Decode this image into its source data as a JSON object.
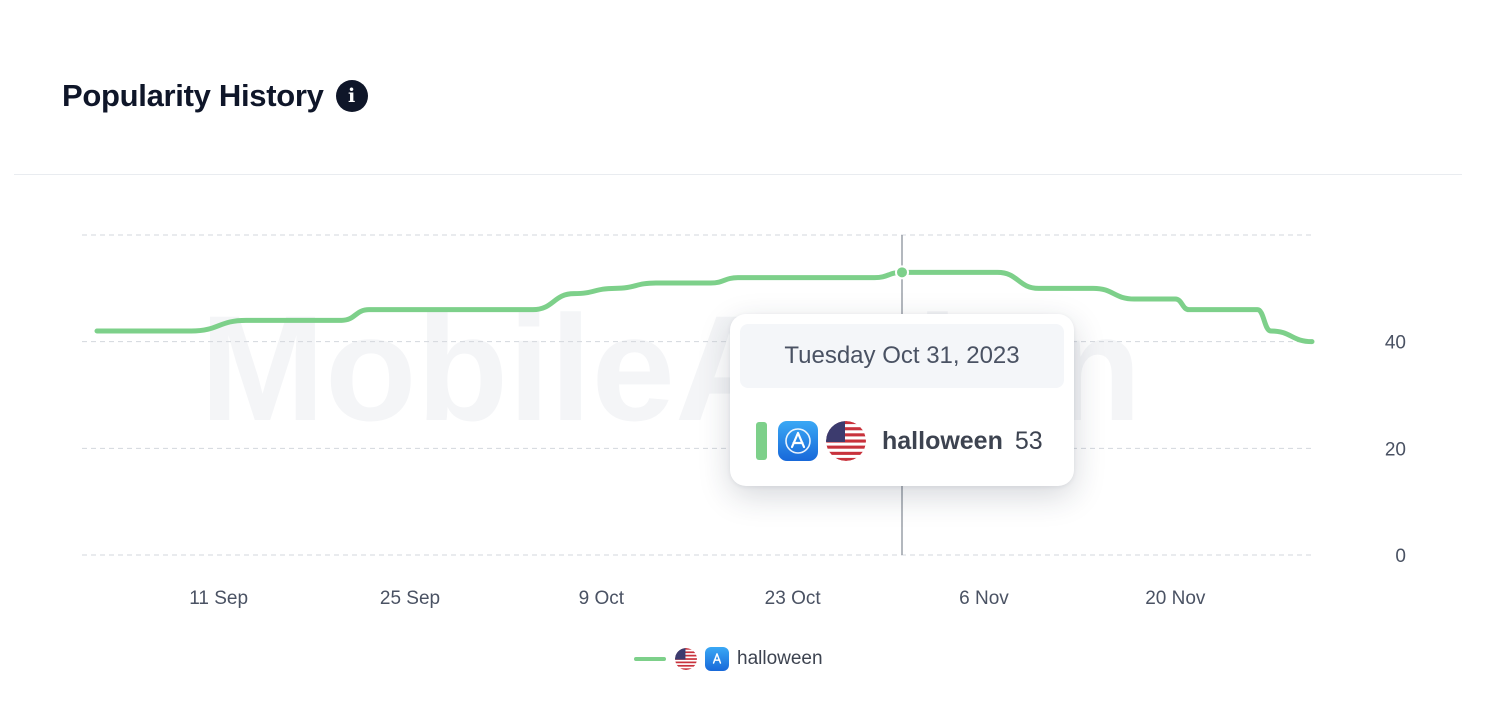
{
  "header": {
    "title": "Popularity History"
  },
  "watermark": {
    "text": "MobileAction"
  },
  "chart_data": {
    "type": "line",
    "title": "Popularity History",
    "xlabel": "",
    "ylabel": "",
    "ylim": [
      0,
      60
    ],
    "yticks": [
      0,
      20,
      40
    ],
    "xticks": [
      {
        "date": "2023-09-11",
        "label": "11 Sep"
      },
      {
        "date": "2023-09-25",
        "label": "25 Sep"
      },
      {
        "date": "2023-10-09",
        "label": "9 Oct"
      },
      {
        "date": "2023-10-23",
        "label": "23 Oct"
      },
      {
        "date": "2023-11-06",
        "label": "6 Nov"
      },
      {
        "date": "2023-11-20",
        "label": "20 Nov"
      }
    ],
    "x_range": [
      "2023-09-01",
      "2023-11-30"
    ],
    "grid": true,
    "y_axis_side": "right",
    "legend_position": "bottom-center",
    "series": [
      {
        "name": "halloween",
        "color": "#7dd08a",
        "country": "us-flag-icon",
        "store": "app-store-icon",
        "points": [
          [
            "2023-09-01",
            42
          ],
          [
            "2023-09-09",
            42
          ],
          [
            "2023-09-13",
            44
          ],
          [
            "2023-09-20",
            44
          ],
          [
            "2023-09-22",
            46
          ],
          [
            "2023-10-04",
            46
          ],
          [
            "2023-10-07",
            49
          ],
          [
            "2023-10-10",
            50
          ],
          [
            "2023-10-13",
            51
          ],
          [
            "2023-10-17",
            51
          ],
          [
            "2023-10-19",
            52
          ],
          [
            "2023-10-29",
            52
          ],
          [
            "2023-10-31",
            53
          ],
          [
            "2023-11-07",
            53
          ],
          [
            "2023-11-10",
            50
          ],
          [
            "2023-11-14",
            50
          ],
          [
            "2023-11-17",
            48
          ],
          [
            "2023-11-20",
            48
          ],
          [
            "2023-11-21",
            46
          ],
          [
            "2023-11-26",
            46
          ],
          [
            "2023-11-27",
            42
          ],
          [
            "2023-11-30",
            40
          ]
        ]
      }
    ]
  },
  "tooltip": {
    "date": "Tuesday Oct 31, 2023",
    "keyword": "halloween",
    "value": "53",
    "hover_x": "2023-10-31",
    "hover_y": 53
  },
  "legend": {
    "label": "halloween"
  }
}
